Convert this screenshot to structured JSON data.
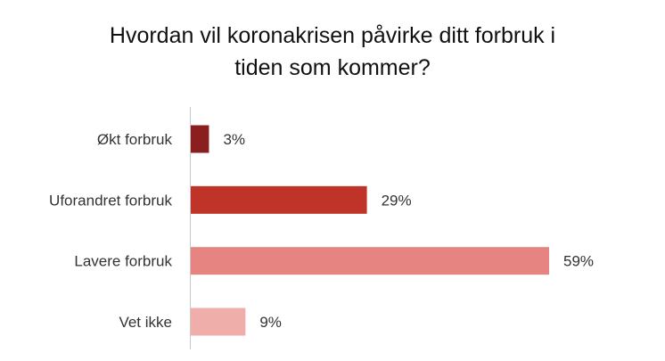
{
  "chart_data": {
    "type": "bar",
    "orientation": "horizontal",
    "title_lines": [
      "Hvordan vil koronakrisen påvirke ditt forbruk i",
      "tiden som kommer?"
    ],
    "categories": [
      "Økt forbruk",
      "Uforandret forbruk",
      "Lavere forbruk",
      "Vet ikke"
    ],
    "values": [
      3,
      29,
      59,
      9
    ],
    "value_labels": [
      "3%",
      "29%",
      "59%",
      "9%"
    ],
    "colors": [
      "#8b1f1f",
      "#bf3328",
      "#e58480",
      "#f0aeaa"
    ],
    "xlabel": "",
    "ylabel": "",
    "xlim": [
      0,
      59
    ],
    "grid": false,
    "legend": "none"
  }
}
